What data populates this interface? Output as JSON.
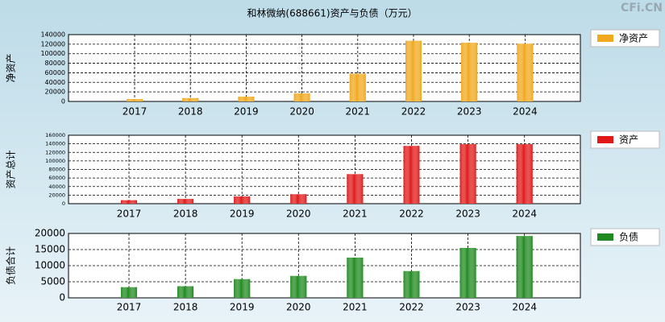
{
  "title": "和林微纳(688661)资产与负债（万元）",
  "watermark": "CFi.CN",
  "chart_data": [
    {
      "type": "bar",
      "ylabel": "净资产",
      "categories": [
        "2017",
        "2018",
        "2019",
        "2020",
        "2021",
        "2022",
        "2023",
        "2024"
      ],
      "series": [
        {
          "name": "净资产",
          "color": "#f0a81c",
          "values": [
            5000,
            7000,
            10000,
            17000,
            58000,
            127000,
            123000,
            121000
          ]
        }
      ],
      "ylim": [
        0,
        140000
      ],
      "yticks": [
        0,
        20000,
        40000,
        60000,
        80000,
        100000,
        120000,
        140000
      ],
      "grid": true
    },
    {
      "type": "bar",
      "ylabel": "资产总计",
      "categories": [
        "2017",
        "2018",
        "2019",
        "2020",
        "2021",
        "2022",
        "2023",
        "2024"
      ],
      "series": [
        {
          "name": "资产",
          "color": "#e01818",
          "values": [
            8000,
            11000,
            17000,
            22000,
            69000,
            135000,
            139000,
            139000
          ]
        }
      ],
      "ylim": [
        0,
        160000
      ],
      "yticks": [
        0,
        20000,
        40000,
        60000,
        80000,
        100000,
        120000,
        140000,
        160000
      ],
      "grid": true
    },
    {
      "type": "bar",
      "ylabel": "负债合计",
      "categories": [
        "2017",
        "2018",
        "2019",
        "2020",
        "2021",
        "2022",
        "2023",
        "2024"
      ],
      "series": [
        {
          "name": "负债",
          "color": "#1f8a1f",
          "values": [
            3300,
            3600,
            5800,
            6800,
            12500,
            8300,
            15500,
            19200
          ]
        }
      ],
      "ylim": [
        0,
        20000
      ],
      "yticks": [
        0,
        5000,
        10000,
        15000,
        20000
      ],
      "grid": true
    }
  ]
}
